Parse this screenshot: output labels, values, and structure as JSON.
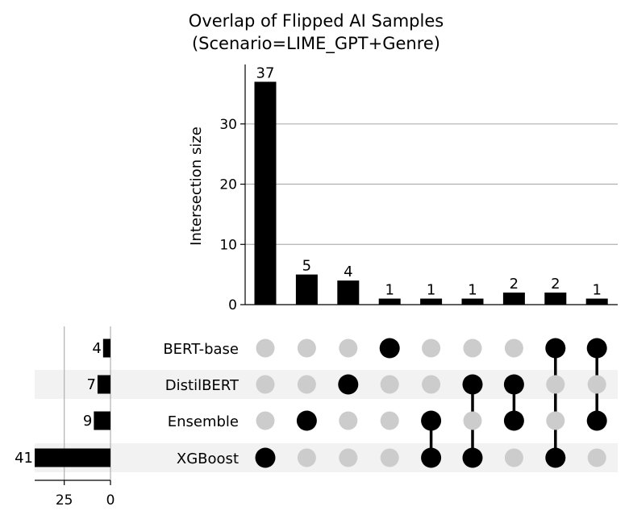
{
  "chart_data": {
    "type": "bar",
    "subtype": "upset",
    "title_lines": [
      "Overlap of Flipped AI Samples",
      "(Scenario=LIME_GPT+Genre)"
    ],
    "ylabel": "Intersection size",
    "ylim": [
      0,
      38
    ],
    "yticks": [
      0,
      10,
      20,
      30
    ],
    "sets": [
      {
        "name": "BERT-base",
        "size": 4
      },
      {
        "name": "DistilBERT",
        "size": 7
      },
      {
        "name": "Ensemble",
        "size": 9
      },
      {
        "name": "XGBoost",
        "size": 41
      }
    ],
    "set_size_axis": {
      "xlim": [
        0,
        41
      ],
      "ticks": [
        25,
        0
      ]
    },
    "intersections": [
      {
        "members": [
          "XGBoost"
        ],
        "value": 37
      },
      {
        "members": [
          "Ensemble"
        ],
        "value": 5
      },
      {
        "members": [
          "DistilBERT"
        ],
        "value": 4
      },
      {
        "members": [
          "BERT-base"
        ],
        "value": 1
      },
      {
        "members": [
          "Ensemble",
          "XGBoost"
        ],
        "value": 1
      },
      {
        "members": [
          "DistilBERT",
          "XGBoost"
        ],
        "value": 1
      },
      {
        "members": [
          "DistilBERT",
          "Ensemble"
        ],
        "value": 2
      },
      {
        "members": [
          "BERT-base",
          "XGBoost"
        ],
        "value": 2
      },
      {
        "members": [
          "BERT-base",
          "Ensemble"
        ],
        "value": 1
      }
    ],
    "colors": {
      "bar": "#000000",
      "dot_active": "#000000",
      "dot_inactive": "#cccccc",
      "stripe": "#f2f2f2",
      "grid": "#b0b0b0"
    }
  }
}
